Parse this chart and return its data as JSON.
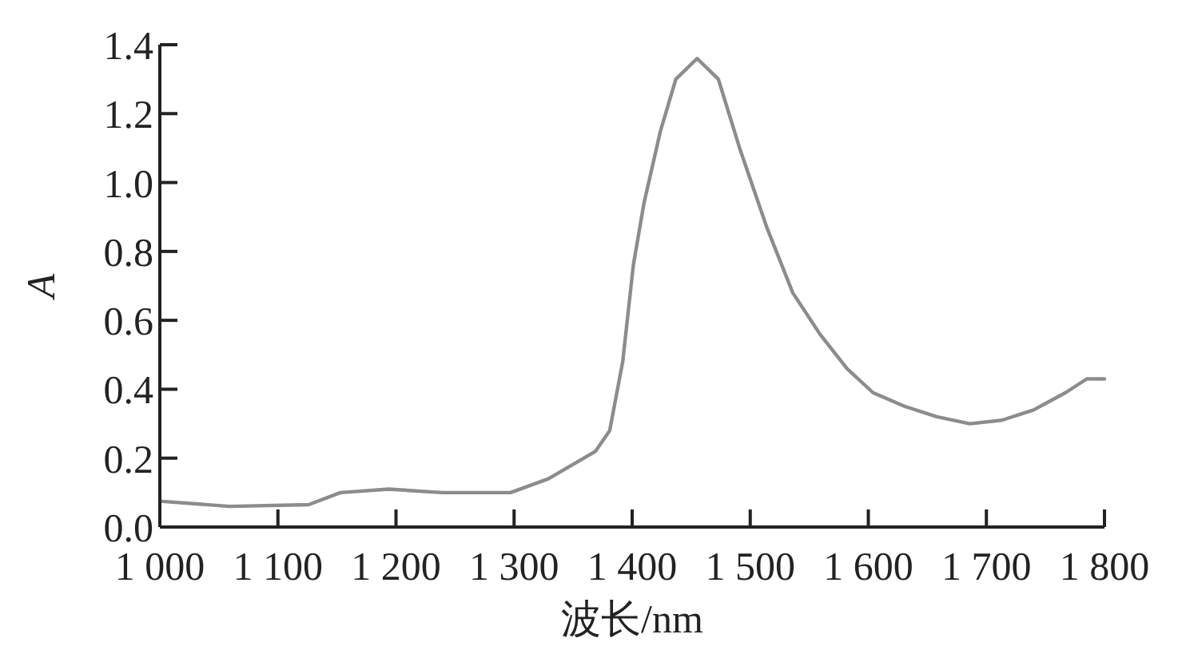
{
  "chart_data": {
    "type": "line",
    "xlabel": "波长/nm",
    "ylabel": "A",
    "xlim": [
      1000,
      1800
    ],
    "xticks": [
      {
        "value": 1000,
        "label": "1 000"
      },
      {
        "value": 1100,
        "label": "1 100"
      },
      {
        "value": 1200,
        "label": "1 200"
      },
      {
        "value": 1300,
        "label": "1 300"
      },
      {
        "value": 1400,
        "label": "1 400"
      },
      {
        "value": 1500,
        "label": "1 500"
      },
      {
        "value": 1600,
        "label": "1 600"
      },
      {
        "value": 1700,
        "label": "1 700"
      },
      {
        "value": 1800,
        "label": "1 800"
      }
    ],
    "ylim": [
      0,
      1.4
    ],
    "yticks": [
      {
        "value": 0,
        "label": "0.0"
      },
      0.2,
      0.4,
      0.6,
      0.8,
      {
        "value": 1,
        "label": "1.0"
      },
      1.2,
      1.4
    ],
    "grid": false,
    "marker": "none",
    "line_style": "solid",
    "series": [
      {
        "color": "#8c8c8c",
        "x": [
          1000,
          1059,
          1126,
          1153,
          1194,
          1239,
          1297,
          1329,
          1369,
          1381,
          1392,
          1401,
          1410,
          1424,
          1437,
          1455,
          1473,
          1491,
          1514,
          1536,
          1559,
          1582,
          1604,
          1631,
          1658,
          1686,
          1713,
          1740,
          1767,
          1785,
          1800
        ],
        "values": [
          0.075,
          0.06,
          0.065,
          0.1,
          0.11,
          0.1,
          0.1,
          0.14,
          0.22,
          0.28,
          0.48,
          0.76,
          0.94,
          1.15,
          1.3,
          1.36,
          1.3,
          1.1,
          0.87,
          0.68,
          0.56,
          0.46,
          0.39,
          0.35,
          0.32,
          0.3,
          0.31,
          0.34,
          0.39,
          0.43,
          0.43
        ]
      }
    ]
  }
}
